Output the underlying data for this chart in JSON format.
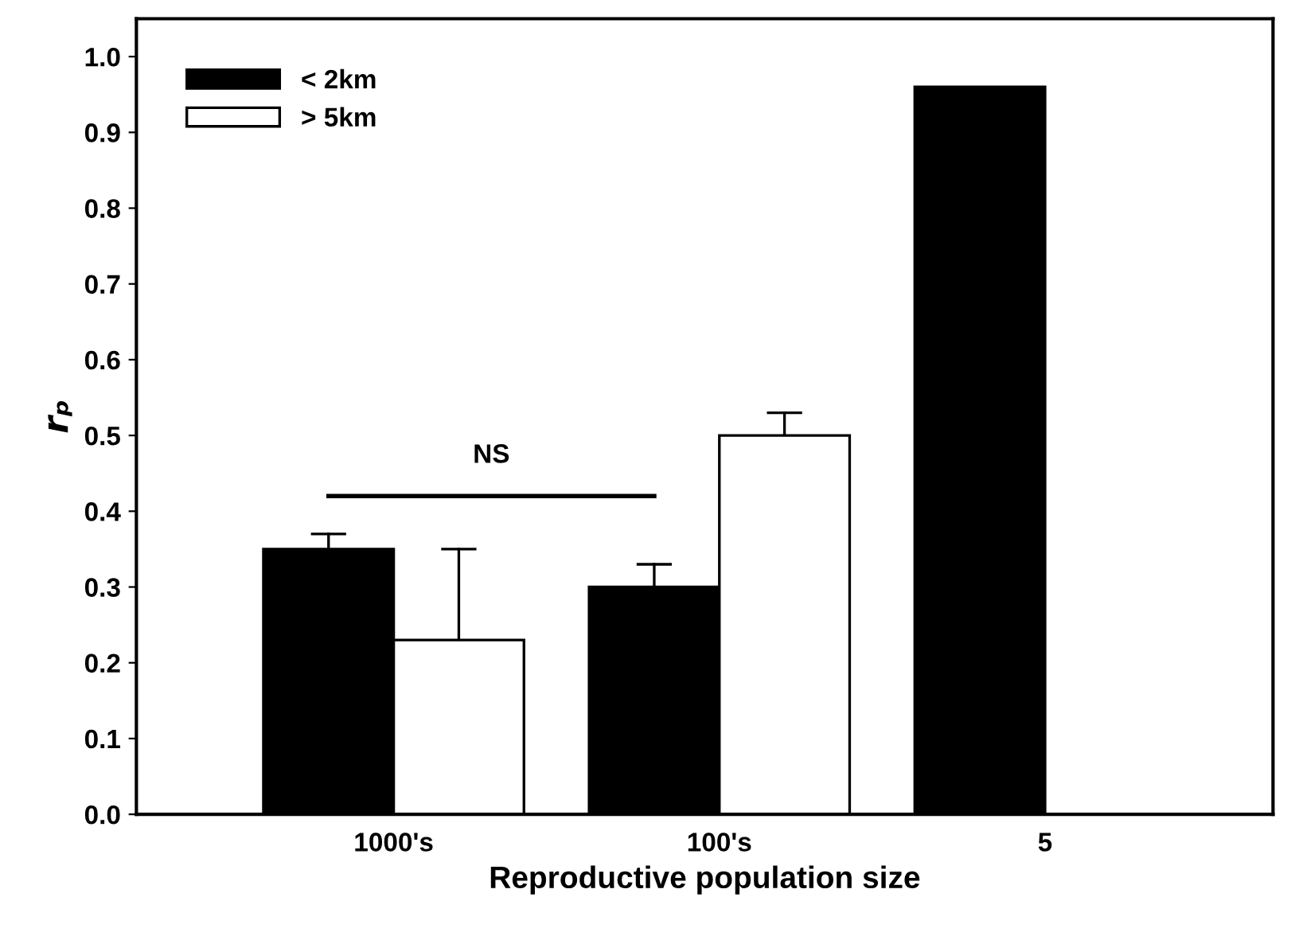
{
  "chart_data": {
    "type": "bar",
    "xlabel": "Reproductive population size",
    "ylabel": "rₚ",
    "categories": [
      "1000's",
      "100's",
      "5"
    ],
    "series": [
      {
        "name": "< 2km",
        "color": "#000000",
        "values": [
          0.35,
          0.3,
          0.96
        ],
        "errors": [
          [
            0.35,
            0.37
          ],
          [
            0.3,
            0.33
          ],
          null
        ]
      },
      {
        "name": "> 5km",
        "color": "#ffffff",
        "values": [
          0.23,
          0.5,
          null
        ],
        "errors": [
          [
            0.23,
            0.35
          ],
          [
            0.5,
            0.53
          ],
          null
        ]
      }
    ],
    "ylim": [
      0,
      1.05
    ],
    "yticks": [
      {
        "value": 0,
        "label": "0.0"
      },
      0.1,
      0.2,
      0.3,
      0.4,
      0.5,
      0.6,
      0.7,
      0.8,
      0.9,
      {
        "value": 1,
        "label": "1.0"
      }
    ],
    "annotations": [
      "NS"
    ],
    "legend": "top left",
    "grid": false
  }
}
